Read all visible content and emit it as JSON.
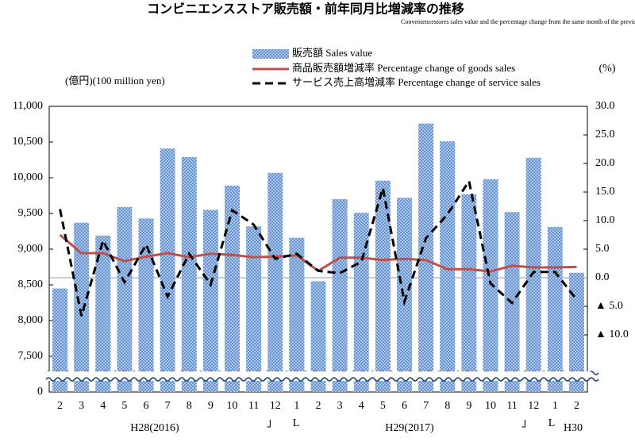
{
  "chart_data": {
    "type": "bar_line",
    "title": "コンビニエンスストア販売額・前年同月比増減率の推移",
    "subtitle": "Conveniencestores sales value and the percentage change from the same month of the previous year",
    "y_label": "(億円)(100 million yen)",
    "y2_label": "(%)",
    "categories": [
      "2",
      "3",
      "4",
      "5",
      "6",
      "7",
      "8",
      "9",
      "10",
      "11",
      "12",
      "1",
      "2",
      "3",
      "4",
      "5",
      "6",
      "7",
      "8",
      "9",
      "10",
      "11",
      "12",
      "1",
      "2"
    ],
    "annotations": [
      "H28(2016)",
      "」",
      "L",
      "H29(2017)",
      "」",
      "L",
      "H30"
    ],
    "ylim": [
      7000,
      11000
    ],
    "yticks": [
      {
        "value": 0,
        "label": "0"
      },
      {
        "value": 7500,
        "label": "7,500"
      },
      {
        "value": 8000,
        "label": "8,000"
      },
      {
        "value": 8500,
        "label": "8,500"
      },
      {
        "value": 9000,
        "label": "9,000"
      },
      {
        "value": 9500,
        "label": "9,500"
      },
      {
        "value": 10000,
        "label": "10,000"
      },
      {
        "value": 10500,
        "label": "10,500"
      },
      {
        "value": 11000,
        "label": "11,000"
      }
    ],
    "axis_break": true,
    "y2lim": [
      -20,
      30
    ],
    "y2ticks": [
      {
        "value": -10,
        "label": "▲ 10.0"
      },
      {
        "value": -5,
        "label": "▲ 5.0"
      },
      {
        "value": 0,
        "label": "0.0"
      },
      {
        "value": 5,
        "label": "5.0"
      },
      {
        "value": 10,
        "label": "10.0"
      },
      {
        "value": 15,
        "label": "15.0"
      },
      {
        "value": 20,
        "label": "20.0"
      },
      {
        "value": 25,
        "label": "25.0"
      },
      {
        "value": 30,
        "label": "30.0"
      }
    ],
    "series": [
      {
        "name": "販売額 Sales value",
        "kind": "bar",
        "color": "#5b8fd0",
        "values": [
          8450,
          9370,
          9190,
          9590,
          9430,
          10410,
          10290,
          9550,
          9890,
          9320,
          10070,
          9160,
          8550,
          9700,
          9510,
          9960,
          9720,
          10760,
          10510,
          9770,
          9980,
          9520,
          10280,
          9310,
          8670
        ]
      },
      {
        "name": "商品販売額増減率 Percentage change of goods sales",
        "kind": "line",
        "axis": "y2",
        "color": "#c0504d",
        "values": [
          7.5,
          4.3,
          4.3,
          2.9,
          3.7,
          4.3,
          3.6,
          4.2,
          4.0,
          3.6,
          3.7,
          3.9,
          1.2,
          3.5,
          3.5,
          3.1,
          3.3,
          3.1,
          1.5,
          1.5,
          1.1,
          2.1,
          1.8,
          1.8,
          1.9
        ]
      },
      {
        "name": "サービス売上高増減率 Percentage change of service sales",
        "kind": "dashed",
        "axis": "y2",
        "color": "#000000",
        "values": [
          12.0,
          -6.7,
          6.5,
          -0.8,
          5.8,
          -3.3,
          4.2,
          -1.2,
          11.8,
          9.3,
          3.3,
          4.2,
          1.2,
          0.8,
          2.8,
          15.7,
          -4.2,
          6.9,
          11.1,
          16.9,
          -1.0,
          -4.4,
          1.0,
          1.0,
          -3.8
        ]
      }
    ]
  }
}
